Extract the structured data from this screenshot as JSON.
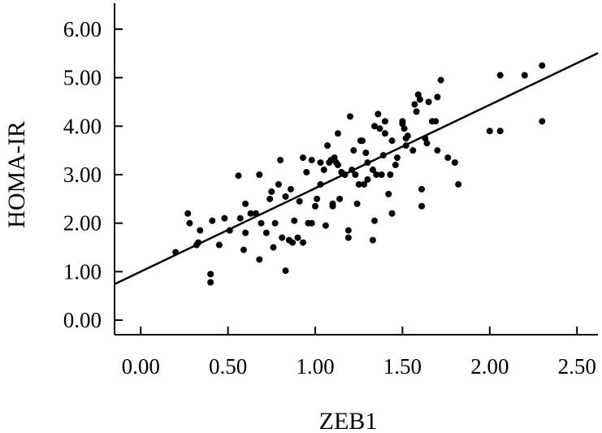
{
  "chart_data": {
    "type": "scatter",
    "xlabel": "ZEB1",
    "ylabel": "HOMA-IR",
    "xlim": [
      -0.15,
      2.62
    ],
    "ylim": [
      -0.3,
      6.3
    ],
    "x_ticks": [
      "0.00",
      "0.50",
      "1.00",
      "1.50",
      "2.00",
      "2.50"
    ],
    "y_ticks": [
      "0.00",
      "1.00",
      "2.00",
      "3.00",
      "4.00",
      "5.00",
      "6.00"
    ],
    "x_tick_values": [
      0,
      0.5,
      1.0,
      1.5,
      2.0,
      2.5
    ],
    "y_tick_values": [
      0,
      1,
      2,
      3,
      4,
      5,
      6
    ],
    "grid": false,
    "points": [
      [
        0.2,
        1.4
      ],
      [
        0.27,
        2.2
      ],
      [
        0.28,
        2.0
      ],
      [
        0.32,
        1.55
      ],
      [
        0.33,
        1.6
      ],
      [
        0.34,
        1.85
      ],
      [
        0.4,
        0.95
      ],
      [
        0.4,
        0.78
      ],
      [
        0.41,
        2.05
      ],
      [
        0.45,
        1.55
      ],
      [
        0.48,
        2.1
      ],
      [
        0.51,
        1.85
      ],
      [
        0.56,
        2.98
      ],
      [
        0.57,
        2.1
      ],
      [
        0.59,
        1.45
      ],
      [
        0.6,
        1.8
      ],
      [
        0.6,
        2.4
      ],
      [
        0.63,
        2.2
      ],
      [
        0.66,
        2.2
      ],
      [
        0.68,
        3.0
      ],
      [
        0.68,
        1.25
      ],
      [
        0.69,
        2.0
      ],
      [
        0.72,
        1.8
      ],
      [
        0.74,
        2.5
      ],
      [
        0.75,
        2.65
      ],
      [
        0.76,
        1.5
      ],
      [
        0.77,
        2.0
      ],
      [
        0.79,
        2.8
      ],
      [
        0.8,
        3.3
      ],
      [
        0.81,
        1.7
      ],
      [
        0.83,
        1.02
      ],
      [
        0.83,
        2.55
      ],
      [
        0.85,
        1.65
      ],
      [
        0.86,
        2.7
      ],
      [
        0.87,
        1.6
      ],
      [
        0.88,
        2.05
      ],
      [
        0.9,
        1.7
      ],
      [
        0.91,
        2.45
      ],
      [
        0.93,
        3.35
      ],
      [
        0.93,
        1.6
      ],
      [
        0.95,
        3.05
      ],
      [
        0.96,
        2.0
      ],
      [
        0.98,
        3.3
      ],
      [
        0.98,
        2.0
      ],
      [
        1.0,
        2.35
      ],
      [
        1.01,
        2.5
      ],
      [
        1.03,
        2.8
      ],
      [
        1.03,
        3.25
      ],
      [
        1.05,
        3.1
      ],
      [
        1.06,
        1.95
      ],
      [
        1.07,
        3.6
      ],
      [
        1.08,
        3.25
      ],
      [
        1.09,
        3.3
      ],
      [
        1.1,
        2.4
      ],
      [
        1.1,
        2.35
      ],
      [
        1.11,
        3.35
      ],
      [
        1.12,
        3.25
      ],
      [
        1.13,
        3.2
      ],
      [
        1.13,
        3.85
      ],
      [
        1.14,
        2.5
      ],
      [
        1.15,
        3.05
      ],
      [
        1.17,
        3.0
      ],
      [
        1.19,
        1.85
      ],
      [
        1.19,
        1.7
      ],
      [
        1.2,
        4.2
      ],
      [
        1.21,
        3.1
      ],
      [
        1.22,
        3.5
      ],
      [
        1.23,
        3.0
      ],
      [
        1.24,
        2.4
      ],
      [
        1.25,
        2.8
      ],
      [
        1.26,
        3.7
      ],
      [
        1.27,
        3.7
      ],
      [
        1.28,
        2.8
      ],
      [
        1.29,
        3.45
      ],
      [
        1.3,
        2.9
      ],
      [
        1.3,
        3.25
      ],
      [
        1.33,
        1.65
      ],
      [
        1.33,
        3.1
      ],
      [
        1.34,
        4.0
      ],
      [
        1.34,
        2.05
      ],
      [
        1.35,
        3.0
      ],
      [
        1.36,
        4.25
      ],
      [
        1.37,
        3.95
      ],
      [
        1.38,
        3.0
      ],
      [
        1.39,
        3.4
      ],
      [
        1.4,
        4.1
      ],
      [
        1.4,
        3.85
      ],
      [
        1.42,
        2.6
      ],
      [
        1.43,
        3.0
      ],
      [
        1.44,
        3.7
      ],
      [
        1.44,
        2.2
      ],
      [
        1.46,
        3.2
      ],
      [
        1.47,
        3.35
      ],
      [
        1.5,
        4.1
      ],
      [
        1.5,
        4.05
      ],
      [
        1.51,
        3.95
      ],
      [
        1.52,
        3.75
      ],
      [
        1.52,
        3.6
      ],
      [
        1.53,
        3.8
      ],
      [
        1.56,
        3.5
      ],
      [
        1.57,
        4.45
      ],
      [
        1.58,
        4.3
      ],
      [
        1.59,
        4.65
      ],
      [
        1.6,
        4.55
      ],
      [
        1.61,
        2.7
      ],
      [
        1.61,
        2.35
      ],
      [
        1.63,
        3.75
      ],
      [
        1.64,
        3.65
      ],
      [
        1.65,
        4.5
      ],
      [
        1.67,
        4.1
      ],
      [
        1.69,
        4.1
      ],
      [
        1.7,
        4.6
      ],
      [
        1.7,
        3.5
      ],
      [
        1.72,
        4.95
      ],
      [
        1.76,
        3.35
      ],
      [
        1.8,
        3.25
      ],
      [
        1.82,
        2.8
      ],
      [
        2.0,
        3.9
      ],
      [
        2.06,
        5.05
      ],
      [
        2.06,
        3.9
      ],
      [
        2.2,
        5.05
      ],
      [
        2.3,
        5.25
      ],
      [
        2.3,
        4.1
      ]
    ],
    "fit_line": {
      "intercept": 1.0,
      "slope": 1.72
    }
  }
}
